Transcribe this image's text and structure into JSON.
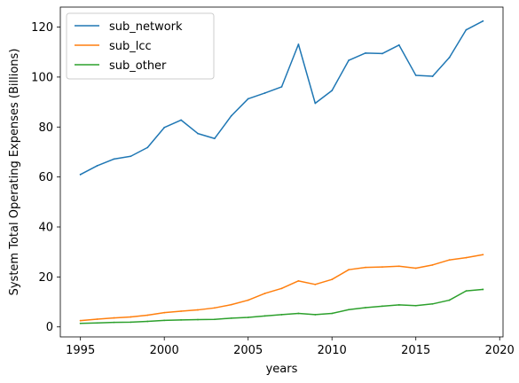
{
  "chart_data": {
    "type": "line",
    "title": "",
    "xlabel": "years",
    "ylabel": "System Total Operating Expenses (Billions)",
    "xlim": [
      1993.8,
      2020.2
    ],
    "ylim": [
      -4,
      128
    ],
    "xticks": [
      1995,
      2000,
      2005,
      2010,
      2015,
      2020
    ],
    "yticks": [
      0,
      20,
      40,
      60,
      80,
      100,
      120
    ],
    "grid": false,
    "legend_position": "upper-left",
    "x": [
      1995,
      1996,
      1997,
      1998,
      1999,
      2000,
      2001,
      2002,
      2003,
      2004,
      2005,
      2006,
      2007,
      2008,
      2009,
      2010,
      2011,
      2012,
      2013,
      2014,
      2015,
      2016,
      2017,
      2018,
      2019
    ],
    "series": [
      {
        "name": "sub_network",
        "color": "#1f77b4",
        "values": [
          61.0,
          64.5,
          67.2,
          68.3,
          71.8,
          79.8,
          82.8,
          77.4,
          75.4,
          84.5,
          91.3,
          93.6,
          96.1,
          113.1,
          89.5,
          94.6,
          106.7,
          109.6,
          109.4,
          112.8,
          100.7,
          100.3,
          107.8,
          118.9,
          122.4
        ]
      },
      {
        "name": "sub_lcc",
        "color": "#ff7f0e",
        "values": [
          2.5,
          3.1,
          3.6,
          4.0,
          4.7,
          5.7,
          6.3,
          6.8,
          7.6,
          8.9,
          10.7,
          13.4,
          15.4,
          18.4,
          17.0,
          19.0,
          22.9,
          23.8,
          24.0,
          24.3,
          23.5,
          24.8,
          26.8,
          27.7,
          28.9
        ]
      },
      {
        "name": "sub_other",
        "color": "#2ca02c",
        "values": [
          1.4,
          1.6,
          1.8,
          1.9,
          2.2,
          2.6,
          2.8,
          2.9,
          3.0,
          3.5,
          3.8,
          4.4,
          4.9,
          5.4,
          4.9,
          5.4,
          6.9,
          7.7,
          8.3,
          8.8,
          8.5,
          9.2,
          10.7,
          14.4,
          15.0
        ]
      }
    ]
  }
}
